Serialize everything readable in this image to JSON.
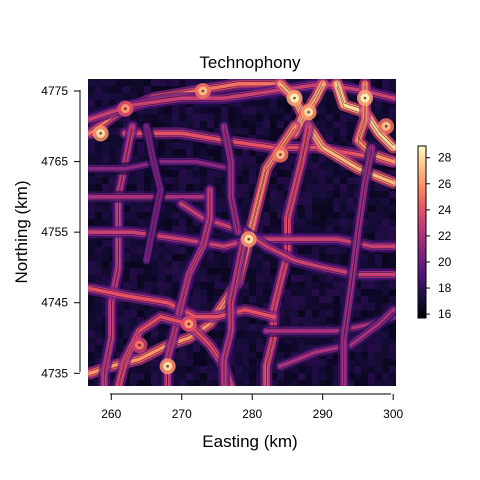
{
  "chart_data": {
    "type": "heatmap",
    "title": "Technophony",
    "xlabel": "Easting (km)",
    "ylabel": "Northing (km)",
    "xlim": [
      256.7,
      300.4
    ],
    "ylim": [
      4733.2,
      4776.7
    ],
    "x_ticks": [
      260,
      270,
      280,
      290,
      300
    ],
    "y_ticks": [
      4735,
      4745,
      4755,
      4765,
      4775
    ],
    "colorbar": {
      "range": [
        15.7,
        28.9
      ],
      "ticks": [
        16,
        18,
        20,
        22,
        24,
        26,
        28
      ],
      "colormap": "magma",
      "placement": "right"
    },
    "colors": {
      "low": "#0c0826",
      "mid": "#8c2981",
      "high": "#fcfdbf"
    },
    "roads": [
      {
        "level": 25,
        "points": [
          [
            257,
            4769
          ],
          [
            261,
            4772
          ],
          [
            266,
            4774
          ],
          [
            272,
            4775
          ],
          [
            278,
            4776
          ],
          [
            284,
            4776
          ]
        ]
      },
      {
        "level": 23,
        "points": [
          [
            257,
            4771
          ],
          [
            263,
            4773
          ],
          [
            270,
            4774
          ],
          [
            276,
            4774
          ],
          [
            283,
            4775
          ],
          [
            290,
            4776
          ],
          [
            296,
            4775
          ],
          [
            300,
            4774
          ]
        ]
      },
      {
        "level": 24,
        "points": [
          [
            262,
            4769
          ],
          [
            270,
            4769
          ],
          [
            276,
            4768
          ],
          [
            283,
            4767
          ],
          [
            289,
            4767
          ],
          [
            295,
            4766
          ],
          [
            300,
            4765
          ]
        ]
      },
      {
        "level": 27,
        "points": [
          [
            284,
            4776
          ],
          [
            286,
            4774
          ],
          [
            288,
            4770
          ],
          [
            290,
            4767
          ],
          [
            295,
            4764
          ],
          [
            300,
            4762
          ]
        ]
      },
      {
        "level": 27,
        "points": [
          [
            290,
            4776
          ],
          [
            289,
            4774
          ],
          [
            287,
            4771
          ],
          [
            286,
            4769
          ]
        ]
      },
      {
        "level": 28,
        "points": [
          [
            292,
            4776
          ],
          [
            293,
            4773
          ],
          [
            296,
            4772
          ],
          [
            298,
            4769
          ],
          [
            300,
            4767
          ]
        ]
      },
      {
        "level": 26,
        "points": [
          [
            296,
            4776
          ],
          [
            296,
            4771
          ],
          [
            295,
            4768
          ],
          [
            297,
            4766
          ],
          [
            300,
            4765
          ]
        ]
      },
      {
        "level": 26,
        "points": [
          [
            286,
            4770
          ],
          [
            284,
            4767
          ],
          [
            282,
            4764
          ],
          [
            281,
            4760
          ],
          [
            280,
            4756
          ],
          [
            279,
            4752
          ],
          [
            278,
            4748
          ],
          [
            276,
            4745
          ],
          [
            274,
            4742
          ],
          [
            271,
            4740
          ],
          [
            268,
            4739
          ],
          [
            264,
            4737
          ],
          [
            260,
            4736
          ],
          [
            257,
            4735
          ]
        ]
      },
      {
        "level": 24,
        "points": [
          [
            288,
            4770
          ],
          [
            287,
            4765
          ],
          [
            286,
            4761
          ],
          [
            285,
            4757
          ],
          [
            285,
            4752
          ],
          [
            284,
            4748
          ],
          [
            283,
            4744
          ],
          [
            283,
            4740
          ],
          [
            282,
            4736
          ],
          [
            282,
            4733
          ]
        ]
      },
      {
        "level": 23,
        "points": [
          [
            263,
            4770
          ],
          [
            262,
            4765
          ],
          [
            261,
            4760
          ],
          [
            261,
            4755
          ],
          [
            261,
            4750
          ],
          [
            260,
            4745
          ],
          [
            260,
            4740
          ],
          [
            259,
            4735
          ],
          [
            259,
            4733
          ]
        ]
      },
      {
        "level": 23,
        "points": [
          [
            257,
            4755
          ],
          [
            263,
            4755
          ],
          [
            270,
            4754
          ],
          [
            276,
            4753
          ],
          [
            280,
            4754
          ],
          [
            286,
            4754
          ],
          [
            292,
            4754
          ],
          [
            297,
            4753
          ],
          [
            300,
            4753
          ]
        ]
      },
      {
        "level": 22,
        "points": [
          [
            257,
            4760
          ],
          [
            262,
            4760
          ],
          [
            268,
            4760
          ],
          [
            273,
            4760
          ]
        ]
      },
      {
        "level": 23,
        "points": [
          [
            270,
            4759
          ],
          [
            273,
            4757
          ],
          [
            276,
            4756
          ],
          [
            279,
            4755
          ],
          [
            282,
            4753
          ],
          [
            286,
            4751
          ],
          [
            290,
            4750
          ],
          [
            295,
            4749
          ],
          [
            300,
            4749
          ]
        ]
      },
      {
        "level": 24,
        "points": [
          [
            257,
            4747
          ],
          [
            262,
            4746
          ],
          [
            268,
            4745
          ],
          [
            272,
            4743
          ],
          [
            275,
            4743
          ],
          [
            279,
            4744
          ],
          [
            283,
            4743
          ]
        ]
      },
      {
        "level": 23,
        "points": [
          [
            268,
            4733
          ],
          [
            268,
            4737
          ],
          [
            269,
            4741
          ],
          [
            270,
            4745
          ],
          [
            271,
            4749
          ],
          [
            273,
            4753
          ],
          [
            274,
            4757
          ],
          [
            274,
            4761
          ]
        ]
      },
      {
        "level": 24,
        "points": [
          [
            261,
            4733
          ],
          [
            262,
            4737
          ],
          [
            264,
            4741
          ],
          [
            267,
            4743
          ],
          [
            271,
            4742
          ],
          [
            274,
            4739
          ],
          [
            276,
            4736
          ],
          [
            277,
            4733
          ]
        ]
      },
      {
        "level": 23,
        "points": [
          [
            276,
            4733
          ],
          [
            276,
            4737
          ],
          [
            277,
            4741
          ],
          [
            277,
            4745
          ],
          [
            278,
            4750
          ],
          [
            279,
            4755
          ]
        ]
      },
      {
        "level": 22,
        "points": [
          [
            282,
            4741
          ],
          [
            287,
            4741
          ],
          [
            292,
            4741
          ],
          [
            297,
            4742
          ],
          [
            300,
            4743
          ]
        ]
      },
      {
        "level": 22,
        "points": [
          [
            284,
            4736
          ],
          [
            289,
            4738
          ],
          [
            294,
            4739
          ],
          [
            298,
            4742
          ],
          [
            300,
            4744
          ]
        ]
      },
      {
        "level": 22,
        "points": [
          [
            293,
            4733
          ],
          [
            293,
            4740
          ],
          [
            294,
            4747
          ],
          [
            295,
            4755
          ],
          [
            296,
            4762
          ],
          [
            297,
            4767
          ]
        ]
      },
      {
        "level": 21,
        "points": [
          [
            257,
            4764
          ],
          [
            262,
            4764
          ],
          [
            267,
            4765
          ],
          [
            272,
            4765
          ],
          [
            277,
            4764
          ]
        ]
      },
      {
        "level": 22,
        "points": [
          [
            276,
            4770
          ],
          [
            277,
            4765
          ],
          [
            277,
            4760
          ],
          [
            278,
            4755
          ]
        ]
      },
      {
        "level": 21,
        "points": [
          [
            265,
            4770
          ],
          [
            266,
            4765
          ],
          [
            267,
            4761
          ],
          [
            266,
            4756
          ],
          [
            265,
            4751
          ]
        ]
      }
    ],
    "hotspots": [
      {
        "x": 258.5,
        "y": 4769,
        "level": 28
      },
      {
        "x": 262,
        "y": 4772.5,
        "level": 26
      },
      {
        "x": 273,
        "y": 4775,
        "level": 27
      },
      {
        "x": 286,
        "y": 4774,
        "level": 28.5
      },
      {
        "x": 288,
        "y": 4772,
        "level": 28
      },
      {
        "x": 296,
        "y": 4774,
        "level": 28.5
      },
      {
        "x": 299,
        "y": 4770,
        "level": 27
      },
      {
        "x": 284,
        "y": 4766,
        "level": 27
      },
      {
        "x": 279.5,
        "y": 4754,
        "level": 28
      },
      {
        "x": 271,
        "y": 4742,
        "level": 26
      },
      {
        "x": 268,
        "y": 4736,
        "level": 28
      },
      {
        "x": 264,
        "y": 4739,
        "level": 25
      }
    ]
  }
}
